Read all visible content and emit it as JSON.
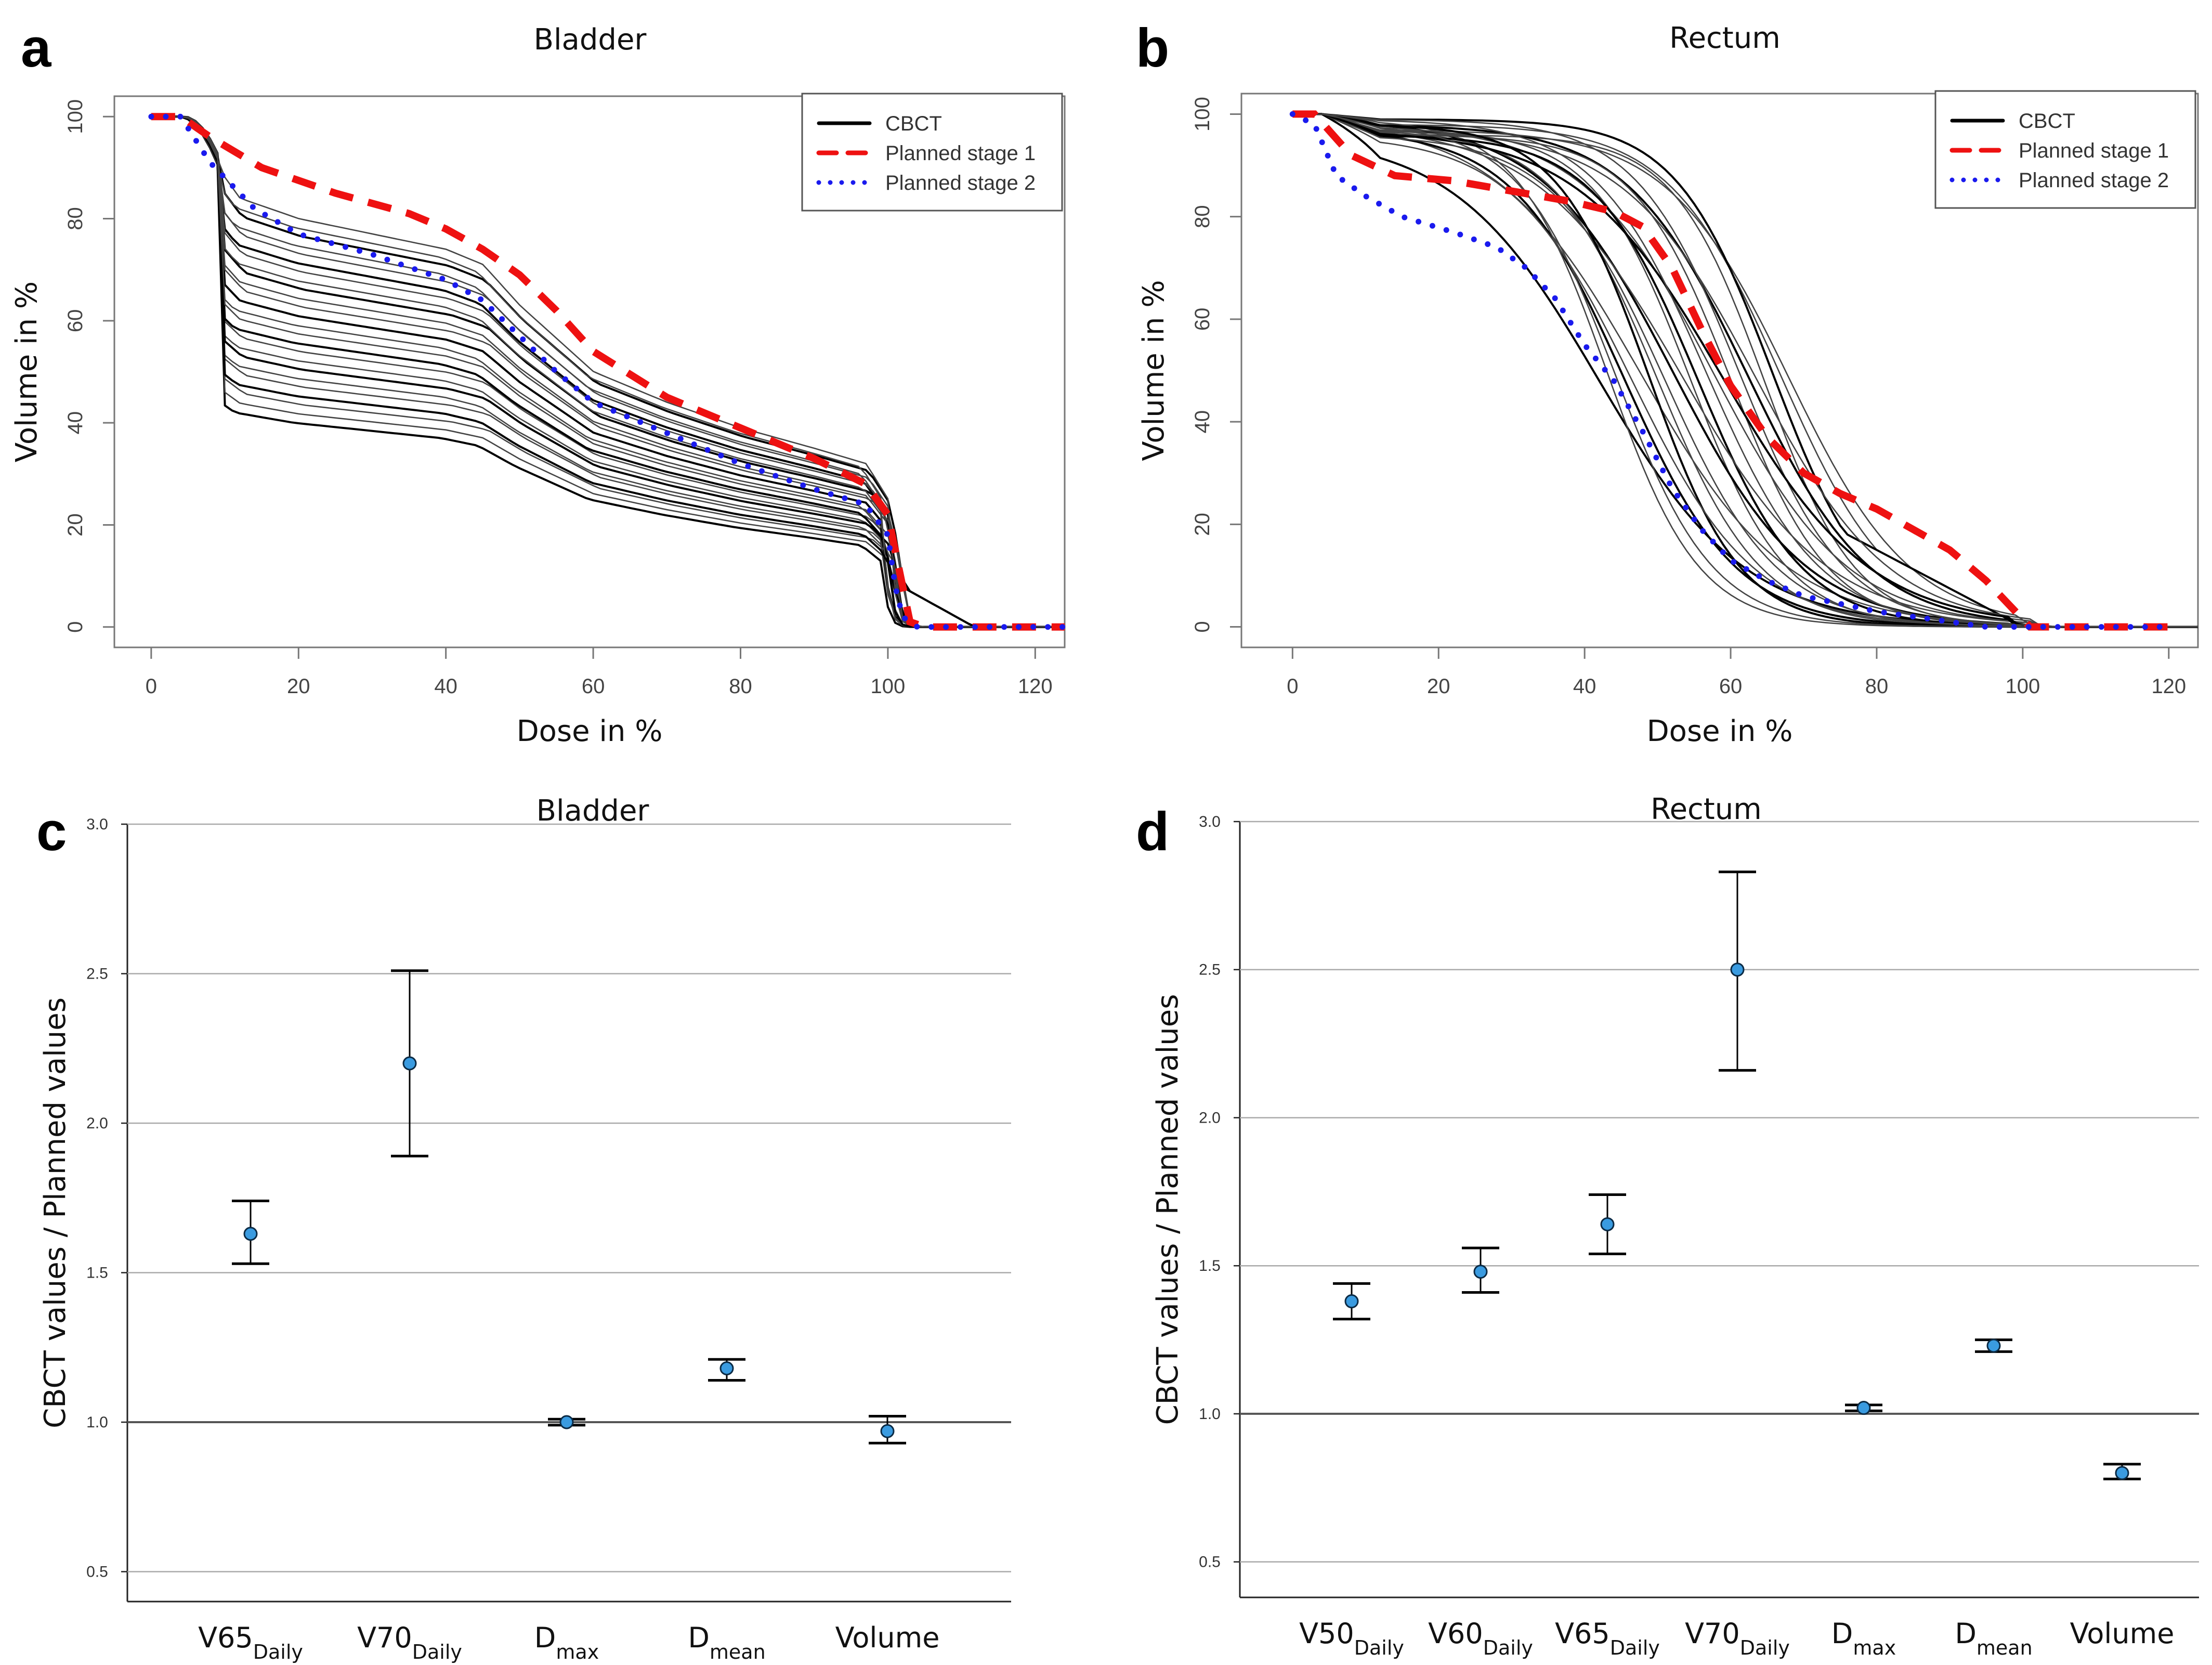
{
  "panels": {
    "a": {
      "letter": "a",
      "title": "Bladder"
    },
    "b": {
      "letter": "b",
      "title": "Rectum"
    },
    "c": {
      "letter": "c",
      "title": "Bladder"
    },
    "d": {
      "letter": "d",
      "title": "Rectum"
    }
  },
  "colors": {
    "cbct": "#000000",
    "planned1": "#ee1111",
    "planned2": "#1a1aee",
    "point": "#3a9be0",
    "grid": "#aaaaaa"
  },
  "chart_data": [
    {
      "id": "a",
      "type": "line",
      "title": "Bladder",
      "xlabel": "Dose in %",
      "ylabel": "Volume in %",
      "xlim": [
        -5,
        124
      ],
      "ylim": [
        -4,
        104
      ],
      "xticks": [
        0,
        20,
        40,
        60,
        80,
        100,
        120
      ],
      "yticks": [
        0,
        20,
        40,
        60,
        80,
        100
      ],
      "legend": {
        "position": "top-right",
        "entries": [
          "CBCT",
          "Planned stage 1",
          "Planned stage 2"
        ]
      },
      "series": [
        {
          "name": "Planned stage 1",
          "style": "dashed",
          "points": [
            [
              0,
              100
            ],
            [
              4,
              100
            ],
            [
              8,
              96
            ],
            [
              15,
              90
            ],
            [
              25,
              85
            ],
            [
              35,
              81
            ],
            [
              40,
              78
            ],
            [
              45,
              74
            ],
            [
              50,
              69
            ],
            [
              55,
              62
            ],
            [
              60,
              54
            ],
            [
              70,
              45
            ],
            [
              80,
              39
            ],
            [
              90,
              33
            ],
            [
              97,
              28
            ],
            [
              100,
              22
            ],
            [
              102,
              8
            ],
            [
              103,
              1
            ],
            [
              105,
              0
            ],
            [
              115,
              0
            ],
            [
              124,
              0
            ]
          ]
        },
        {
          "name": "Planned stage 2",
          "style": "dotted",
          "points": [
            [
              0,
              100
            ],
            [
              4,
              100
            ],
            [
              8,
              91
            ],
            [
              14,
              82
            ],
            [
              20,
              77
            ],
            [
              30,
              73
            ],
            [
              40,
              68
            ],
            [
              45,
              64
            ],
            [
              50,
              57
            ],
            [
              55,
              50
            ],
            [
              60,
              44
            ],
            [
              70,
              38
            ],
            [
              80,
              32
            ],
            [
              90,
              27
            ],
            [
              97,
              24
            ],
            [
              100,
              18
            ],
            [
              101,
              8
            ],
            [
              102,
              2
            ],
            [
              104,
              0
            ],
            [
              120,
              0
            ],
            [
              124,
              0
            ]
          ]
        },
        {
          "name": "CBCT",
          "style": "solid",
          "count": 24,
          "profile": {
            "x": [
              0,
              4,
              8,
              12,
              20,
              30,
              40,
              45,
              50,
              60,
              70,
              80,
              90,
              97,
              100,
              102,
              104,
              120
            ],
            "fracs": [
              1,
              1,
              0.92,
              0.84,
              0.8,
              0.77,
              0.74,
              0.71,
              0.63,
              0.5,
              0.44,
              0.39,
              0.35,
              0.32,
              0.25,
              0.06,
              0,
              0
            ]
          },
          "level_range": [
            50,
            100
          ]
        }
      ]
    },
    {
      "id": "b",
      "type": "line",
      "title": "Rectum",
      "xlabel": "Dose in %",
      "ylabel": "Volume in %",
      "xlim": [
        -7,
        124
      ],
      "ylim": [
        -4,
        104
      ],
      "xticks": [
        0,
        20,
        40,
        60,
        80,
        100,
        120
      ],
      "yticks": [
        0,
        20,
        40,
        60,
        80,
        100
      ],
      "legend": {
        "position": "top-right",
        "entries": [
          "CBCT",
          "Planned stage 1",
          "Planned stage 2"
        ]
      },
      "series": [
        {
          "name": "Planned stage 1",
          "style": "dashed",
          "points": [
            [
              0,
              100
            ],
            [
              3,
              100
            ],
            [
              8,
              92
            ],
            [
              14,
              88
            ],
            [
              22,
              87
            ],
            [
              30,
              85
            ],
            [
              38,
              83
            ],
            [
              44,
              81
            ],
            [
              48,
              78
            ],
            [
              52,
              70
            ],
            [
              56,
              58
            ],
            [
              60,
              47
            ],
            [
              65,
              37
            ],
            [
              70,
              30
            ],
            [
              75,
              26
            ],
            [
              80,
              23
            ],
            [
              85,
              19
            ],
            [
              90,
              15
            ],
            [
              95,
              9
            ],
            [
              99,
              3
            ],
            [
              101,
              0
            ],
            [
              120,
              0
            ]
          ]
        },
        {
          "name": "Planned stage 2",
          "style": "dotted",
          "points": [
            [
              0,
              100
            ],
            [
              3,
              98
            ],
            [
              6,
              88
            ],
            [
              10,
              84
            ],
            [
              15,
              80
            ],
            [
              22,
              77
            ],
            [
              28,
              74
            ],
            [
              32,
              70
            ],
            [
              36,
              64
            ],
            [
              40,
              55
            ],
            [
              44,
              48
            ],
            [
              48,
              38
            ],
            [
              52,
              27
            ],
            [
              56,
              19
            ],
            [
              60,
              13
            ],
            [
              65,
              9
            ],
            [
              70,
              6
            ],
            [
              80,
              3
            ],
            [
              90,
              1
            ],
            [
              95,
              0
            ],
            [
              120,
              0
            ]
          ]
        },
        {
          "name": "CBCT",
          "style": "solid",
          "count": 24,
          "midpoint_range": [
            42,
            68
          ]
        }
      ]
    },
    {
      "id": "c",
      "type": "errorbar",
      "title": "Bladder",
      "ylabel": "CBCT values / Planned values",
      "ylim": [
        0.4,
        3.0
      ],
      "yticks": [
        0.5,
        1.0,
        1.5,
        2.0,
        2.5,
        3.0
      ],
      "ytick_labels": [
        "0.5",
        "1.0",
        "1.5",
        "2.0",
        "2.5",
        "3.0"
      ],
      "reference_line": 1.0,
      "categories": [
        {
          "main": "V65",
          "sub": "Daily"
        },
        {
          "main": "V70",
          "sub": "Daily"
        },
        {
          "main": "D",
          "sub": "max"
        },
        {
          "main": "D",
          "sub": "mean"
        },
        {
          "main": "Volume",
          "sub": ""
        }
      ],
      "values": [
        1.63,
        2.2,
        1.0,
        1.18,
        0.97
      ],
      "lower": [
        1.53,
        1.89,
        0.99,
        1.14,
        0.93
      ],
      "upper": [
        1.74,
        2.51,
        1.01,
        1.21,
        1.02
      ]
    },
    {
      "id": "d",
      "type": "errorbar",
      "title": "Rectum",
      "ylabel": "CBCT values / Planned values",
      "ylim": [
        0.38,
        3.0
      ],
      "yticks": [
        0.5,
        1.0,
        1.5,
        2.0,
        2.5,
        3.0
      ],
      "ytick_labels": [
        "0.5",
        "1.0",
        "1.5",
        "2.0",
        "2.5",
        "3.0"
      ],
      "reference_line": 1.0,
      "categories": [
        {
          "main": "V50",
          "sub": "Daily"
        },
        {
          "main": "V60",
          "sub": "Daily"
        },
        {
          "main": "V65",
          "sub": "Daily"
        },
        {
          "main": "V70",
          "sub": "Daily"
        },
        {
          "main": "D",
          "sub": "max"
        },
        {
          "main": "D",
          "sub": "mean"
        },
        {
          "main": "Volume",
          "sub": ""
        }
      ],
      "values": [
        1.38,
        1.48,
        1.64,
        2.5,
        1.02,
        1.23,
        0.8
      ],
      "lower": [
        1.32,
        1.41,
        1.54,
        2.16,
        1.01,
        1.21,
        0.78
      ],
      "upper": [
        1.44,
        1.56,
        1.74,
        2.83,
        1.03,
        1.25,
        0.83
      ]
    }
  ]
}
